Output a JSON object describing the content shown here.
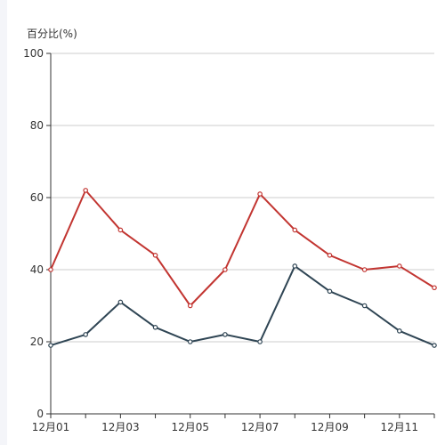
{
  "colors": {
    "grid": "#cccccc",
    "axis": "#333333",
    "text": "#333333",
    "background": "#ffffff"
  },
  "chart_data": {
    "type": "line",
    "title": "",
    "xlabel": "",
    "ylabel": "百分比(%)",
    "ylim": [
      0,
      100
    ],
    "y_ticks": [
      0,
      20,
      40,
      60,
      80,
      100
    ],
    "grid": true,
    "legend": "none",
    "categories": [
      "12月01",
      "12月02",
      "12月03",
      "12月04",
      "12月05",
      "12月06",
      "12月07",
      "12月08",
      "12月09",
      "12月10",
      "12月11",
      "12月12"
    ],
    "x_tick_labels": [
      "12月01",
      "12月03",
      "12月05",
      "12月07",
      "12月09",
      "12月11"
    ],
    "series": [
      {
        "color": "#c23531",
        "values": [
          40,
          62,
          51,
          44,
          30,
          40,
          61,
          51,
          44,
          40,
          41,
          35
        ]
      },
      {
        "color": "#2f4554",
        "values": [
          19,
          22,
          31,
          24,
          20,
          22,
          20,
          41,
          34,
          30,
          23,
          19
        ]
      }
    ]
  }
}
